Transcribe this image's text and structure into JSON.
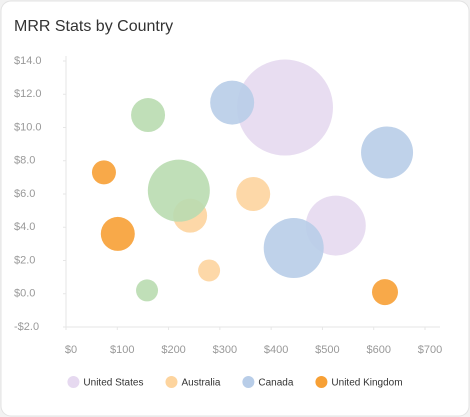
{
  "chart_data": {
    "type": "bubble",
    "title": "MRR Stats by Country",
    "xlim": [
      0,
      700
    ],
    "xticks": [
      {
        "value": 0,
        "label": "$0"
      },
      {
        "value": 100,
        "label": "$100"
      },
      {
        "value": 200,
        "label": "$200"
      },
      {
        "value": 300,
        "label": "$300"
      },
      {
        "value": 400,
        "label": "$400"
      },
      {
        "value": 500,
        "label": "$500"
      },
      {
        "value": 600,
        "label": "$600"
      },
      {
        "value": 700,
        "label": "$700"
      }
    ],
    "ylim": [
      -2,
      14
    ],
    "yticks": [
      {
        "value": -2,
        "label": "-$2.0"
      },
      {
        "value": 0,
        "label": "$0.0"
      },
      {
        "value": 2,
        "label": "$2.0"
      },
      {
        "value": 4,
        "label": "$4.0"
      },
      {
        "value": 6,
        "label": "$6.0"
      },
      {
        "value": 8,
        "label": "$8.0"
      },
      {
        "value": 10,
        "label": "$10.0"
      },
      {
        "value": 12,
        "label": "$12.0"
      },
      {
        "value": 14,
        "label": "$14.0"
      }
    ],
    "legend": "bottom",
    "series": [
      {
        "name": "United States",
        "color": "#e6d9f0",
        "x": [
          427,
          526
        ],
        "values": [
          11.2,
          4.1
        ],
        "sizes": [
          48,
          30
        ]
      },
      {
        "name": "Australia",
        "color": "#fdd49e",
        "x": [
          365,
          242,
          279
        ],
        "values": [
          6.0,
          4.7,
          1.4
        ],
        "sizes": [
          17,
          17,
          11
        ]
      },
      {
        "name": "Canada",
        "color": "#b8cde8",
        "x": [
          324,
          626,
          444
        ],
        "values": [
          11.5,
          8.5,
          2.75
        ],
        "sizes": [
          22,
          26,
          30
        ]
      },
      {
        "name": "United Kingdom",
        "color": "#f7a035",
        "x": [
          74,
          101,
          622
        ],
        "values": [
          7.3,
          3.6,
          0.1
        ],
        "sizes": [
          12,
          17,
          13
        ]
      },
      {
        "color": "#b9dcb0",
        "x": [
          160,
          220,
          158
        ],
        "values": [
          10.75,
          6.2,
          0.2
        ],
        "sizes": [
          17,
          31,
          11
        ]
      }
    ]
  }
}
